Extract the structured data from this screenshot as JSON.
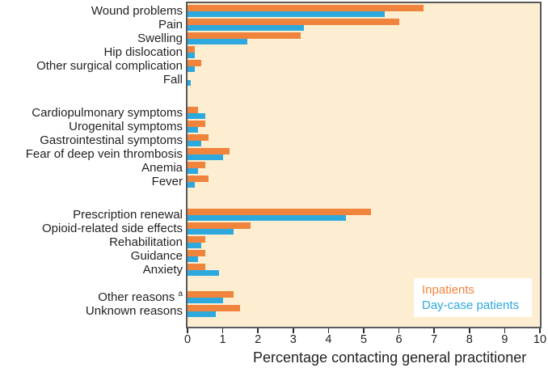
{
  "chart_data": {
    "type": "bar",
    "orientation": "horizontal",
    "title": "",
    "xlabel": "Percentage contacting general practitioner",
    "ylabel": "",
    "xlim": [
      0,
      10
    ],
    "xticks": [
      0,
      1,
      2,
      3,
      4,
      5,
      6,
      7,
      8,
      9,
      10
    ],
    "grid": false,
    "legend_position": "bottom-right",
    "colors": {
      "plot_background": "#fdeed2",
      "plot_border": "#58595b",
      "text": "#231f20",
      "legend_background": "#ffffff"
    },
    "series": [
      {
        "key": "inpatients",
        "name": "Inpatients",
        "color": "#f0843c"
      },
      {
        "key": "day-case-patients",
        "name": "Day-case patients",
        "color": "#2ea9dd"
      }
    ],
    "groups": [
      {
        "categories": [
          {
            "label": "Wound problems",
            "values": [
              6.7,
              5.6
            ]
          },
          {
            "label": "Pain",
            "values": [
              6.0,
              3.3
            ]
          },
          {
            "label": "Swelling",
            "values": [
              3.2,
              1.7
            ]
          },
          {
            "label": "Hip dislocation",
            "values": [
              0.2,
              0.2
            ]
          },
          {
            "label": "Other surgical complication",
            "values": [
              0.4,
              0.2
            ]
          },
          {
            "label": "Fall",
            "values": [
              0,
              0.1
            ]
          }
        ]
      },
      {
        "categories": [
          {
            "label": "Cardiopulmonary symptoms",
            "values": [
              0.3,
              0.5
            ]
          },
          {
            "label": "Urogenital symptoms",
            "values": [
              0.5,
              0.3
            ]
          },
          {
            "label": "Gastrointestinal symptoms",
            "values": [
              0.6,
              0.4
            ]
          },
          {
            "label": "Fear of deep vein thrombosis",
            "values": [
              1.2,
              1.0
            ]
          },
          {
            "label": "Anemia",
            "values": [
              0.5,
              0.3
            ]
          },
          {
            "label": "Fever",
            "values": [
              0.6,
              0.2
            ]
          }
        ]
      },
      {
        "categories": [
          {
            "label": "Prescription renewal",
            "values": [
              5.2,
              4.5
            ]
          },
          {
            "label": "Opioid-related side effects",
            "values": [
              1.8,
              1.3
            ]
          },
          {
            "label": "Rehabilitation",
            "values": [
              0.5,
              0.4
            ]
          },
          {
            "label": "Guidance",
            "values": [
              0.5,
              0.3
            ]
          },
          {
            "label": "Anxiety",
            "values": [
              0.5,
              0.9
            ]
          }
        ]
      },
      {
        "categories": [
          {
            "label": "Other reasons",
            "superscript": "a",
            "values": [
              1.3,
              1.0
            ]
          },
          {
            "label": "Unknown reasons",
            "values": [
              1.5,
              0.8
            ]
          }
        ]
      }
    ]
  }
}
